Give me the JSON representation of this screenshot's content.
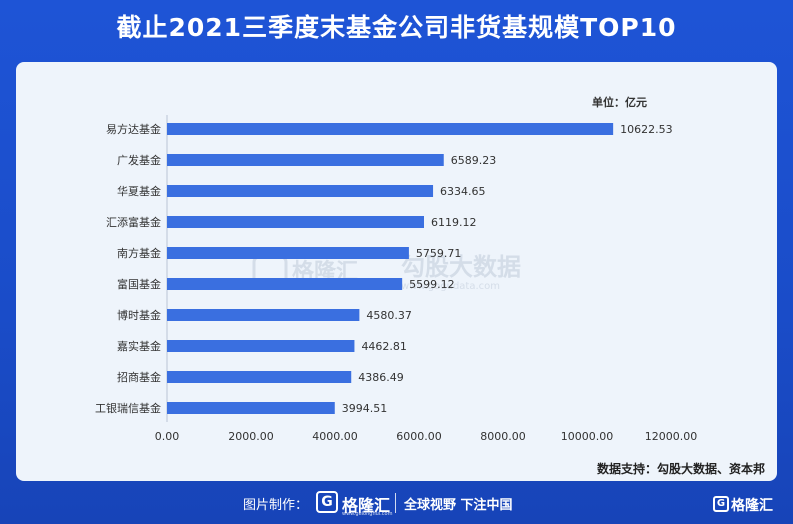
{
  "title": "截止2021三季度末基金公司非货基规模TOP10",
  "chart_data": {
    "type": "bar",
    "orientation": "horizontal",
    "categories": [
      "易方达基金",
      "广发基金",
      "华夏基金",
      "汇添富基金",
      "南方基金",
      "富国基金",
      "博时基金",
      "嘉实基金",
      "招商基金",
      "工银瑞信基金"
    ],
    "values": [
      10622.53,
      6589.23,
      6334.65,
      6119.12,
      5759.71,
      5599.12,
      4580.37,
      4462.81,
      4386.49,
      3994.51
    ],
    "value_labels": [
      "10622.53",
      "6589.23",
      "6334.65",
      "6119.12",
      "5759.71",
      "5599.12",
      "4580.37",
      "4462.81",
      "4386.49",
      "3994.51"
    ],
    "xlim": [
      0,
      12000
    ],
    "x_ticks": [
      "0.00",
      "2000.00",
      "4000.00",
      "6000.00",
      "8000.00",
      "10000.00",
      "12000.00"
    ],
    "unit_label": "单位：亿元",
    "grid": false,
    "bar_color": "#3a6fe0"
  },
  "watermark": {
    "logo_text": "格隆汇",
    "brand_text": "勾股大数据",
    "domain_text": "www.gogudata.com"
  },
  "source": "数据支持：勾股大数据、资本邦",
  "footer": {
    "made_by": "图片制作：",
    "logo_char": "G",
    "brand": "格隆汇",
    "brand_sub": "www.gelonghui.com",
    "slogan": "全球视野 下注中国",
    "corner_logo_char": "G",
    "corner_brand": "格隆汇"
  }
}
